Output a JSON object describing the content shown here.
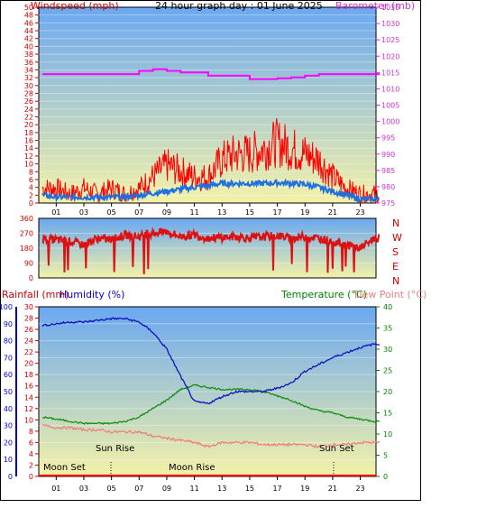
{
  "header": {
    "title": "24 hour graph day : 01 June 2025",
    "left_label": "Windspeed (mph)",
    "right_label": "Barometer (mb)"
  },
  "colors": {
    "wind": "#ff0000",
    "gust_avg": "#1e6fe0",
    "barometer": "#ff00ff",
    "direction": "#dd1111",
    "humidity": "#1010c0",
    "temperature": "#109010",
    "dewpoint": "#f08080",
    "rain": "#ff0000",
    "axis_red": "#cc0000",
    "axis_blue": "#0000cc",
    "axis_green": "#008000",
    "sky_top": "#6aa8f0",
    "sky_bottom": "#f4f2a8"
  },
  "hour_ticks": [
    "01",
    "03",
    "05",
    "07",
    "09",
    "11",
    "13",
    "15",
    "17",
    "19",
    "21",
    "23"
  ],
  "chart_data": [
    {
      "type": "line",
      "title": "24 hour graph day : 01 June 2025",
      "x": [
        0,
        1,
        2,
        3,
        4,
        5,
        6,
        7,
        8,
        9,
        10,
        11,
        12,
        13,
        14,
        15,
        16,
        17,
        18,
        19,
        20,
        21,
        22,
        23,
        24
      ],
      "series": [
        {
          "name": "Windspeed (mph)",
          "axis": "left",
          "values": [
            4,
            4,
            3,
            4,
            3,
            4,
            3,
            4,
            6,
            8,
            7,
            6,
            6,
            9,
            10,
            10,
            11,
            12,
            11,
            10,
            9,
            6,
            4,
            3,
            3
          ]
        },
        {
          "name": "",
          "axis": "left",
          "values": [
            2,
            1.5,
            1.5,
            1.5,
            1.5,
            1.5,
            1.5,
            2,
            2.5,
            3,
            3.5,
            4,
            4.5,
            5,
            5,
            5,
            5,
            5.2,
            5,
            4.8,
            4,
            3,
            2,
            1,
            1
          ]
        },
        {
          "name": "Barometer (mb)",
          "axis": "right",
          "values": [
            1014.5,
            1014.5,
            1014.5,
            1014.5,
            1014.5,
            1014.5,
            1014.5,
            1015.5,
            1016,
            1015.5,
            1015,
            1015,
            1014,
            1014,
            1014,
            1013,
            1013,
            1013.2,
            1013.5,
            1014,
            1014.5,
            1014.5,
            1014.5,
            1014.5,
            1014.5
          ]
        }
      ],
      "ylim": [
        0,
        50
      ],
      "y2lim": [
        975,
        1035
      ],
      "left_ticks": [
        "0",
        "2",
        "4",
        "6",
        "8",
        "10",
        "12",
        "14",
        "16",
        "18",
        "20",
        "22",
        "24",
        "26",
        "28",
        "30",
        "32",
        "34",
        "36",
        "38",
        "40",
        "42",
        "44",
        "46",
        "48",
        "50"
      ],
      "right_ticks": [
        "975",
        "980",
        "985",
        "990",
        "995",
        "1000",
        "1005",
        "1010",
        "1015",
        "1020",
        "1025",
        "1030",
        "1035"
      ]
    },
    {
      "type": "scatter",
      "x": [
        0,
        1,
        2,
        3,
        4,
        5,
        6,
        7,
        8,
        9,
        10,
        11,
        12,
        13,
        14,
        15,
        16,
        17,
        18,
        19,
        20,
        21,
        22,
        23,
        24
      ],
      "series": [
        {
          "name": "",
          "values": [
            240,
            230,
            220,
            200,
            240,
            230,
            260,
            250,
            270,
            280,
            250,
            260,
            240,
            245,
            250,
            240,
            250,
            255,
            240,
            250,
            240,
            220,
            200,
            180,
            240
          ]
        }
      ],
      "ylim": [
        0,
        360
      ],
      "left_ticks": [
        "0",
        "90",
        "180",
        "270",
        "360"
      ],
      "right_labels": [
        "N",
        "W",
        "S",
        "E",
        "N"
      ]
    },
    {
      "type": "line",
      "x": [
        0,
        1,
        2,
        3,
        4,
        5,
        6,
        7,
        8,
        9,
        10,
        11,
        12,
        13,
        14,
        15,
        16,
        17,
        18,
        19,
        20,
        21,
        22,
        23,
        24
      ],
      "series": [
        {
          "name": "Humidity (%)",
          "axis": "humidity",
          "values": [
            89,
            90,
            91,
            91,
            92,
            93,
            93,
            91,
            85,
            75,
            59,
            44,
            43,
            47,
            50,
            50,
            50,
            52,
            55,
            62,
            66,
            70,
            73,
            76,
            78
          ]
        },
        {
          "name": "Temperature (°C)",
          "axis": "temperature",
          "values": [
            14,
            13.5,
            13,
            12.5,
            12.5,
            12.5,
            13,
            14,
            16,
            18,
            20.5,
            21.5,
            21,
            20.5,
            20.5,
            20.5,
            20,
            19,
            18,
            16.5,
            15.5,
            15,
            14,
            13.5,
            13
          ]
        },
        {
          "name": "Dew Point (°C)",
          "axis": "temperature",
          "values": [
            12,
            11.5,
            11.5,
            11,
            11,
            10.5,
            10.5,
            10.5,
            9.5,
            9,
            8.5,
            8,
            7,
            8,
            8,
            8,
            7.5,
            7.5,
            7.5,
            7.5,
            7,
            7.5,
            7.5,
            8,
            8
          ]
        },
        {
          "name": "Rainfall (mm)",
          "axis": "rain",
          "values": [
            0,
            0,
            0,
            0,
            0,
            0,
            0,
            0,
            0,
            0,
            0,
            0,
            0,
            0,
            0,
            0,
            0,
            0,
            0,
            0,
            0,
            0,
            0,
            0,
            0
          ]
        }
      ],
      "humidity_ticks": [
        "0",
        "10",
        "20",
        "30",
        "40",
        "50",
        "60",
        "70",
        "80",
        "90",
        "100"
      ],
      "rain_ticks": [
        "0",
        "2",
        "4",
        "6",
        "8",
        "10",
        "12",
        "14",
        "16",
        "18",
        "20",
        "22",
        "24",
        "26",
        "28",
        "30"
      ],
      "temp_ticks": [
        "0",
        "5",
        "10",
        "15",
        "20",
        "25",
        "30",
        "35",
        "40"
      ]
    }
  ],
  "labels": {
    "rainfall": "Rainfall (mm)",
    "humidity": "Humidity (%)",
    "temperature": "Temperature (°C)",
    "dewpoint": "Dew Point (°C)"
  },
  "events": {
    "sun_rise": "Sun Rise",
    "sun_set": "Sun Set",
    "moon_set": "Moon Set",
    "moon_rise": "Moon Rise"
  }
}
